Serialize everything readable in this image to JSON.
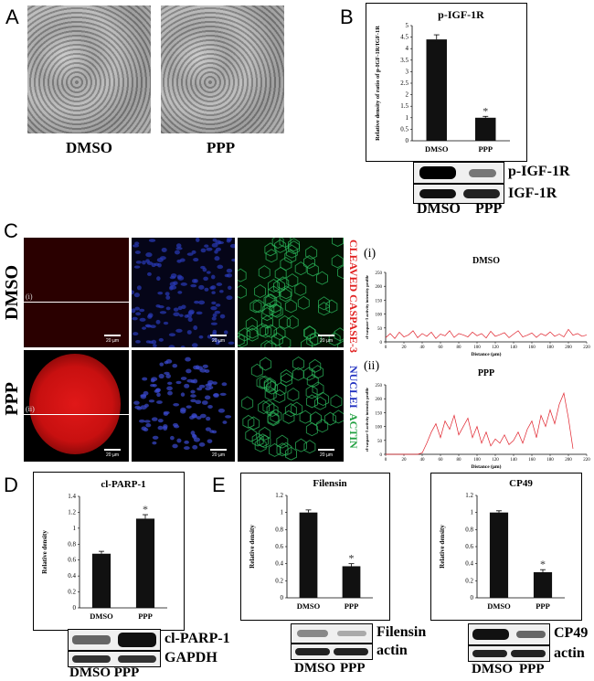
{
  "panels": {
    "A": {
      "letter": "A",
      "labels": [
        "DMSO",
        "PPP"
      ]
    },
    "B": {
      "letter": "B",
      "blot_labels": [
        "p-IGF-1R",
        "IGF-1R"
      ],
      "blot_x_labels": [
        "DMSO",
        "PPP"
      ]
    },
    "C": {
      "letter": "C",
      "row_labels": [
        "DMSO",
        "PPP"
      ],
      "channel_labels": [
        "CLEAVED CASPASE-3",
        "NUCLEI",
        "ACTIN"
      ],
      "line_markers": [
        "(i)",
        "(ii)"
      ],
      "scale_text": "20 µm",
      "profile_labels": [
        "(i)",
        "(ii)"
      ]
    },
    "D": {
      "letter": "D",
      "blot_labels": [
        "cl-PARP-1",
        "GAPDH"
      ],
      "blot_x_labels": "DMSO PPP"
    },
    "E": {
      "letter": "E",
      "blot1_labels": [
        "Filensin",
        "actin"
      ],
      "blot2_labels": [
        "CP49",
        "actin"
      ],
      "blot_x_labels": [
        "DMSO",
        "PPP"
      ]
    }
  },
  "chart_data": [
    {
      "id": "B-chart",
      "type": "bar",
      "title": "p-IGF-1R",
      "ylabel": "Relative density of ratio of p-IGF-1R/IGF-1R",
      "categories": [
        "DMSO",
        "PPP"
      ],
      "values": [
        4.4,
        1.0
      ],
      "error": [
        0.2,
        0.06
      ],
      "ylim": [
        0,
        5
      ],
      "yticks": [
        "0",
        "0.5",
        "1",
        "1.5",
        "2",
        "2.5",
        "3",
        "3.5",
        "4",
        "4.5",
        "5"
      ],
      "significance": "*",
      "bar_color": "#111111"
    },
    {
      "id": "C-profile-i",
      "type": "line",
      "title": "DMSO",
      "ylabel": "cl-caspase-3 activity intensity profile",
      "xlabel": "Distance (µm)",
      "xlim": [
        0,
        220
      ],
      "ylim": [
        0,
        250
      ],
      "xticks": [
        "0",
        "20",
        "40",
        "60",
        "80",
        "100",
        "120",
        "140",
        "160",
        "180",
        "200",
        "220"
      ],
      "yticks": [
        "0",
        "50",
        "100",
        "150",
        "200",
        "250"
      ],
      "series": [
        {
          "color": "#e0202a",
          "x": [
            0,
            5,
            10,
            15,
            20,
            25,
            30,
            35,
            40,
            45,
            50,
            55,
            60,
            65,
            70,
            75,
            80,
            85,
            90,
            95,
            100,
            105,
            110,
            115,
            120,
            125,
            130,
            135,
            140,
            145,
            150,
            155,
            160,
            165,
            170,
            175,
            180,
            185,
            190,
            195,
            200,
            205,
            210,
            215,
            220
          ],
          "y": [
            15,
            30,
            12,
            35,
            18,
            25,
            40,
            15,
            30,
            20,
            35,
            12,
            28,
            22,
            40,
            16,
            30,
            25,
            18,
            35,
            22,
            30,
            14,
            38,
            20,
            26,
            33,
            15,
            28,
            40,
            18,
            24,
            32,
            16,
            30,
            22,
            36,
            20,
            28,
            18,
            45,
            24,
            30,
            20,
            25
          ]
        }
      ]
    },
    {
      "id": "C-profile-ii",
      "type": "line",
      "title": "PPP",
      "ylabel": "cl-caspase-3 activity intensity profile",
      "xlabel": "Distance (µm)",
      "xlim": [
        0,
        220
      ],
      "ylim": [
        0,
        250
      ],
      "xticks": [
        "0",
        "20",
        "40",
        "60",
        "80",
        "100",
        "120",
        "140",
        "160",
        "180",
        "200",
        "220"
      ],
      "yticks": [
        "0",
        "50",
        "100",
        "150",
        "200",
        "250"
      ],
      "series": [
        {
          "color": "#e0202a",
          "x": [
            0,
            5,
            10,
            15,
            20,
            25,
            30,
            35,
            40,
            45,
            50,
            55,
            60,
            65,
            70,
            75,
            80,
            85,
            90,
            95,
            100,
            105,
            110,
            115,
            120,
            125,
            130,
            135,
            140,
            145,
            150,
            155,
            160,
            165,
            170,
            175,
            180,
            185,
            190,
            195,
            200,
            205
          ],
          "y": [
            0,
            0,
            0,
            0,
            0,
            0,
            0,
            0,
            5,
            40,
            80,
            110,
            60,
            120,
            90,
            140,
            70,
            100,
            130,
            60,
            100,
            40,
            80,
            30,
            55,
            40,
            70,
            35,
            50,
            80,
            40,
            90,
            120,
            60,
            140,
            100,
            160,
            110,
            180,
            220,
            130,
            20
          ]
        }
      ]
    },
    {
      "id": "D-chart",
      "type": "bar",
      "title": "cl-PARP-1",
      "ylabel": "Relative density",
      "categories": [
        "DMSO",
        "PPP"
      ],
      "values": [
        0.68,
        1.12
      ],
      "error": [
        0.03,
        0.05
      ],
      "ylim": [
        0,
        1.4
      ],
      "yticks": [
        "0",
        "0.2",
        "0.4",
        "0.6",
        "0.8",
        "1",
        "1.2",
        "1.4"
      ],
      "significance": "*",
      "bar_color": "#111111"
    },
    {
      "id": "E-chart-1",
      "type": "bar",
      "title": "Filensin",
      "ylabel": "Relative density",
      "categories": [
        "DMSO",
        "PPP"
      ],
      "values": [
        1.0,
        0.37
      ],
      "error": [
        0.03,
        0.03
      ],
      "ylim": [
        0,
        1.2
      ],
      "yticks": [
        "0",
        "0.2",
        "0.4",
        "0.6",
        "0.8",
        "1",
        "1.2"
      ],
      "significance": "*",
      "bar_color": "#111111"
    },
    {
      "id": "E-chart-2",
      "type": "bar",
      "title": "CP49",
      "ylabel": "Relative density",
      "categories": [
        "DMSO",
        "PPP"
      ],
      "values": [
        1.0,
        0.3
      ],
      "error": [
        0.02,
        0.03
      ],
      "ylim": [
        0,
        1.2
      ],
      "yticks": [
        "0",
        "0.2",
        "0.4",
        "0.6",
        "0.8",
        "1",
        "1.2"
      ],
      "significance": "*",
      "bar_color": "#111111"
    }
  ]
}
